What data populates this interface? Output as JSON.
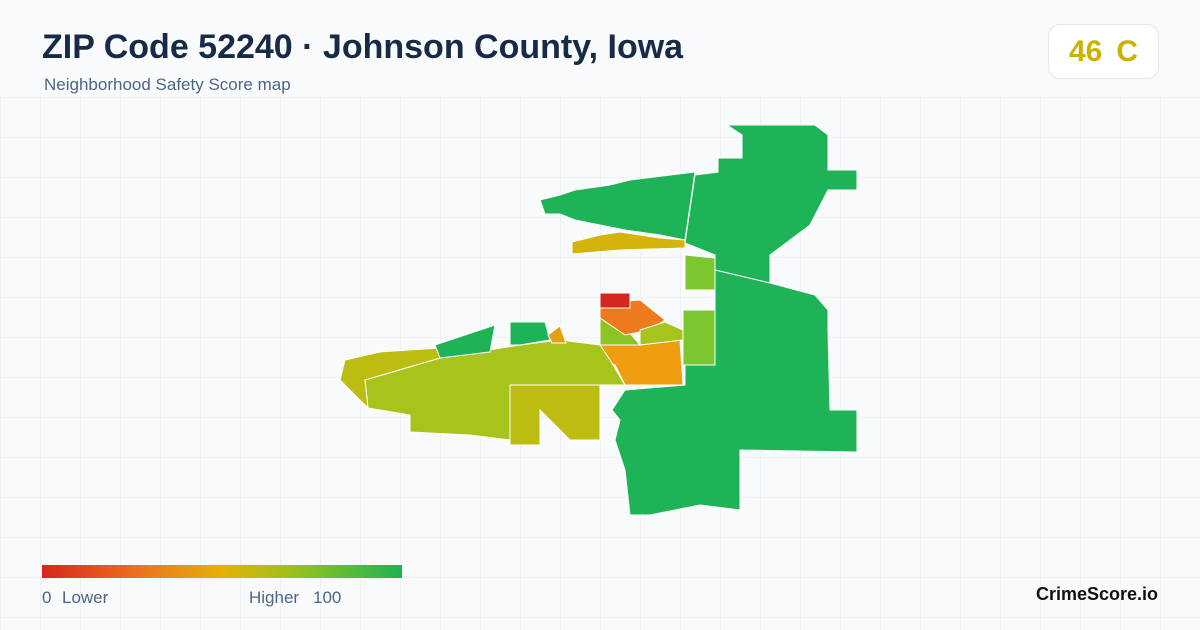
{
  "header": {
    "title": "ZIP Code 52240 · Johnson County, Iowa",
    "subtitle": "Neighborhood Safety Score map"
  },
  "score": {
    "value": 46,
    "grade": "C"
  },
  "legend": {
    "min": 0,
    "min_label": "Lower",
    "max_label": "Higher",
    "max": 100
  },
  "brand": "CrimeScore.io"
}
